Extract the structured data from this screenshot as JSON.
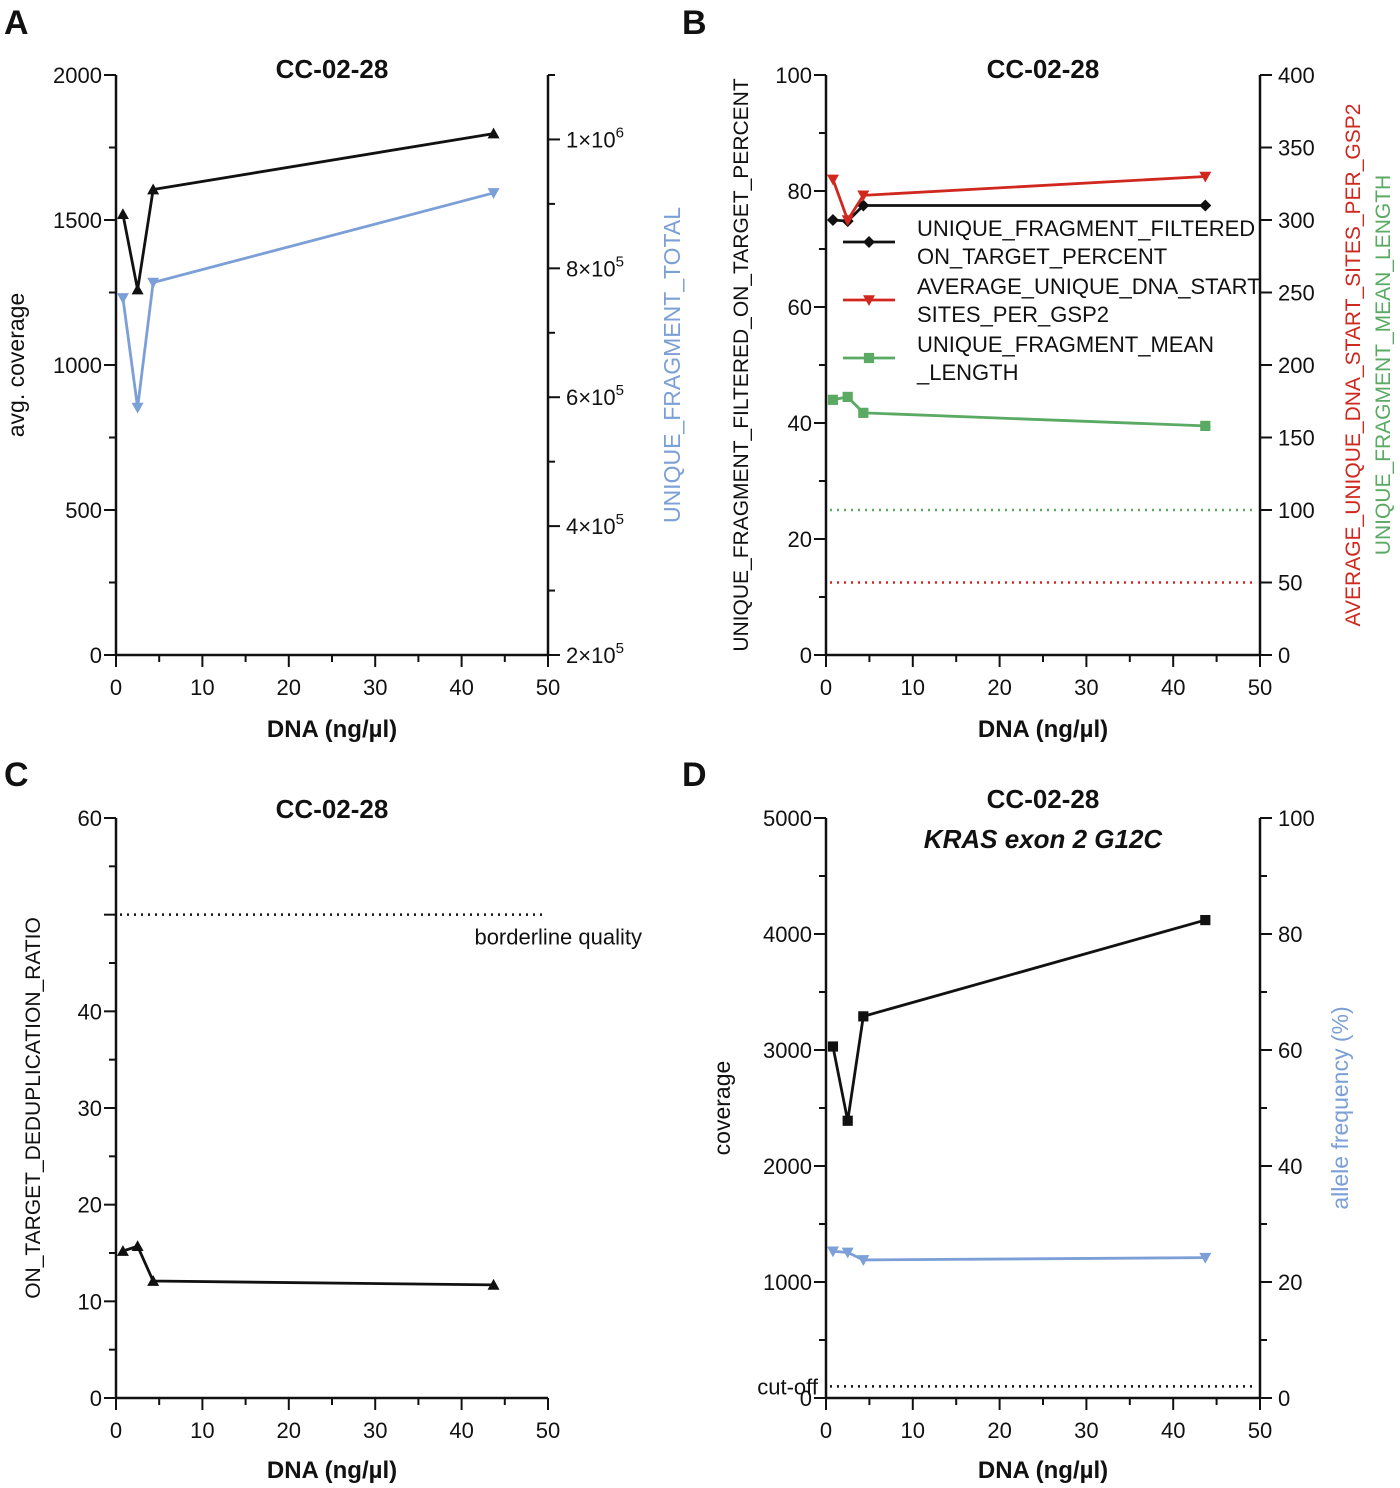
{
  "chart_data": [
    {
      "panel": "A",
      "type": "line",
      "title": "CC-02-28",
      "xlabel": "DNA (ng/µl)",
      "ylabel": "avg. coverage",
      "y2label": "UNIQUE_FRAGMENT_TOTAL",
      "xlim": [
        0,
        50
      ],
      "ylim": [
        0,
        2000
      ],
      "y2lim": [
        200000,
        1100000
      ],
      "xticks": [
        "0",
        "10",
        "20",
        "30",
        "40",
        "50"
      ],
      "yticks": [
        "0",
        "500",
        "1000",
        "1500",
        "2000"
      ],
      "y2ticks": [
        {
          "value": 200000,
          "base": "2×10",
          "exp": "5"
        },
        {
          "value": 400000,
          "base": "4×10",
          "exp": "5"
        },
        {
          "value": 600000,
          "base": "6×10",
          "exp": "5"
        },
        {
          "value": 800000,
          "base": "8×10",
          "exp": "5"
        },
        {
          "value": 1000000,
          "base": "1×10",
          "exp": "6"
        }
      ],
      "series": [
        {
          "name": "avg. coverage",
          "axis": "left",
          "color": "#111111",
          "marker": "triangle-up",
          "x": [
            0.8,
            2.5,
            4.3,
            43.7
          ],
          "values": [
            1520,
            1260,
            1605,
            1798
          ]
        },
        {
          "name": "UNIQUE_FRAGMENT_TOTAL",
          "axis": "right",
          "color": "#7b9fd6",
          "marker": "triangle-down",
          "x": [
            0.8,
            2.5,
            4.3,
            43.7
          ],
          "values": [
            754000,
            584000,
            778000,
            917000
          ]
        }
      ]
    },
    {
      "panel": "B",
      "type": "line",
      "title": "CC-02-28",
      "xlabel": "DNA (ng/µl)",
      "ylabel": "UNIQUE_FRAGMENT_FILTERED_ON_TARGET_PERCENT",
      "y2label": [
        "AVERAGE_UNIQUE_DNA_START_SITES_PER_GSP2",
        "UNIQUE_FRAGMENT_MEAN_LENGTH"
      ],
      "xlim": [
        0,
        50
      ],
      "ylim": [
        0,
        100
      ],
      "y2lim": [
        0,
        400
      ],
      "xticks": [
        "0",
        "10",
        "20",
        "30",
        "40",
        "50"
      ],
      "yticks": [
        "0",
        "20",
        "40",
        "60",
        "80",
        "100"
      ],
      "y2ticks": [
        "0",
        "50",
        "100",
        "150",
        "200",
        "250",
        "300",
        "350",
        "400"
      ],
      "legend": {
        "position": "center-right",
        "entries": [
          {
            "line1": "UNIQUE_FRAGMENT_FILTERED",
            "line2": "ON_TARGET_PERCENT",
            "color": "#111111",
            "marker": "diamond"
          },
          {
            "line1": "AVERAGE_UNIQUE_DNA_START",
            "line2": "SITES_PER_GSP2",
            "color": "#d0281e",
            "marker": "triangle-down"
          },
          {
            "line1": "UNIQUE_FRAGMENT_MEAN",
            "line2": "_LENGTH",
            "color": "#5aaa64",
            "marker": "square"
          }
        ]
      },
      "series": [
        {
          "name": "UNIQUE_FRAGMENT_FILTERED_ON_TARGET_PERCENT",
          "axis": "left",
          "color": "#111111",
          "marker": "diamond",
          "x": [
            0.8,
            2.5,
            4.3,
            43.7
          ],
          "values": [
            75,
            74.8,
            77.5,
            77.5
          ]
        },
        {
          "name": "AVERAGE_UNIQUE_DNA_START_SITES_PER_GSP2",
          "axis": "right",
          "color": "#d0281e",
          "marker": "triangle-down",
          "x": [
            0.8,
            2.5,
            4.3,
            43.7
          ],
          "values": [
            328,
            300,
            317,
            330
          ]
        },
        {
          "name": "UNIQUE_FRAGMENT_MEAN_LENGTH",
          "axis": "right",
          "color": "#5aaa64",
          "marker": "square",
          "x": [
            0.8,
            2.5,
            4.3,
            43.7
          ],
          "values": [
            176,
            178,
            167,
            158
          ]
        }
      ],
      "reference_lines": [
        {
          "axis": "right",
          "value": 100,
          "color": "#5aaa64",
          "style": "dotted"
        },
        {
          "axis": "right",
          "value": 50,
          "color": "#d0281e",
          "style": "dotted"
        }
      ]
    },
    {
      "panel": "C",
      "type": "line",
      "title": "CC-02-28",
      "xlabel": "DNA (ng/µl)",
      "ylabel": "ON_TARGET_DEDUPLICATION_RATIO",
      "xlim": [
        0,
        50
      ],
      "ylim": [
        0,
        60
      ],
      "xticks": [
        "0",
        "10",
        "20",
        "30",
        "40",
        "50"
      ],
      "yticks": [
        "0",
        "10",
        "20",
        "30",
        "40",
        "60"
      ],
      "series": [
        {
          "name": "ON_TARGET_DEDUPLICATION_RATIO",
          "axis": "left",
          "color": "#111111",
          "marker": "triangle-up",
          "x": [
            0.8,
            2.5,
            4.3,
            43.7
          ],
          "values": [
            15.2,
            15.7,
            12.1,
            11.7
          ]
        }
      ],
      "reference_lines": [
        {
          "axis": "left",
          "value": 50,
          "color": "#111111",
          "style": "dotted",
          "label": "borderline quality"
        }
      ]
    },
    {
      "panel": "D",
      "type": "line",
      "title": "CC-02-28",
      "subtitle": "KRAS exon 2 G12C",
      "xlabel": "DNA (ng/µl)",
      "ylabel": "coverage",
      "y2label": "allele frequency (%)",
      "xlim": [
        0,
        50
      ],
      "ylim": [
        0,
        5000
      ],
      "y2lim": [
        0,
        100
      ],
      "xticks": [
        "0",
        "10",
        "20",
        "30",
        "40",
        "50"
      ],
      "yticks": [
        "0",
        "1000",
        "2000",
        "3000",
        "4000",
        "5000"
      ],
      "y2ticks": [
        "0",
        "20",
        "40",
        "60",
        "80",
        "100"
      ],
      "series": [
        {
          "name": "coverage",
          "axis": "left",
          "color": "#111111",
          "marker": "square",
          "x": [
            0.8,
            2.5,
            4.3,
            43.7
          ],
          "values": [
            3030,
            2390,
            3290,
            4120
          ]
        },
        {
          "name": "allele frequency (%)",
          "axis": "right",
          "color": "#7b9fd6",
          "marker": "triangle-down",
          "x": [
            0.8,
            2.5,
            4.3,
            43.7
          ],
          "values": [
            25.3,
            25.1,
            23.8,
            24.2
          ]
        }
      ],
      "reference_lines": [
        {
          "axis": "left",
          "value": 100,
          "color": "#111111",
          "style": "dotted",
          "label": "cut-off"
        }
      ]
    }
  ],
  "panel_letters": [
    "A",
    "B",
    "C",
    "D"
  ]
}
